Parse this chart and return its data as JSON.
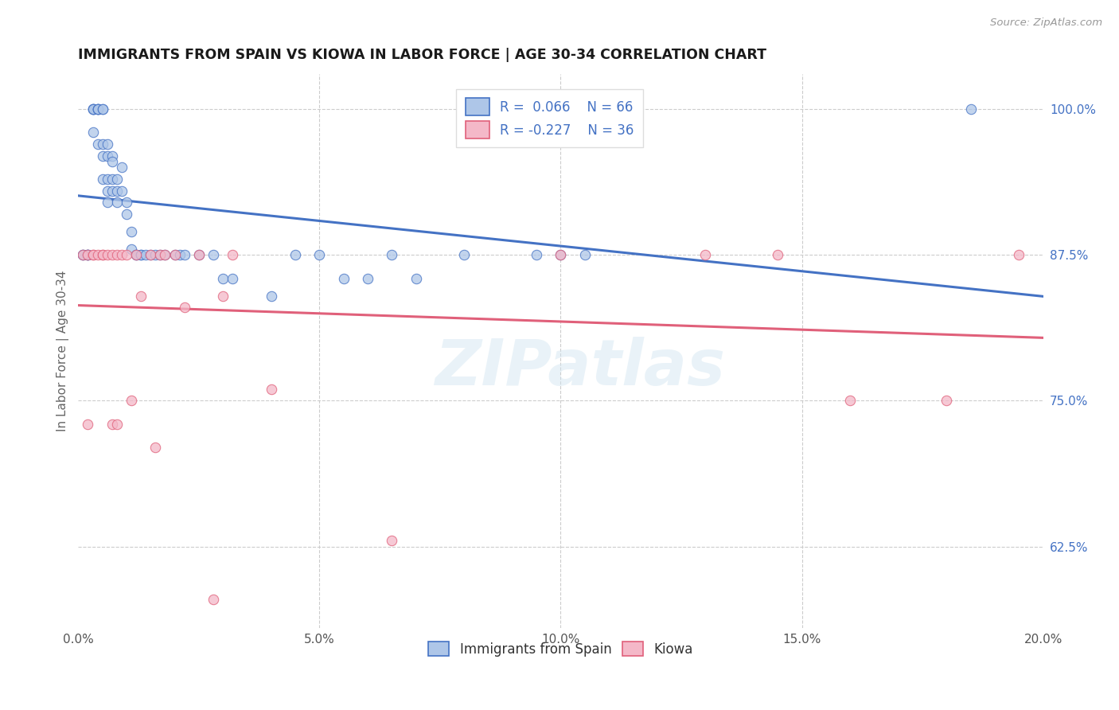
{
  "title": "IMMIGRANTS FROM SPAIN VS KIOWA IN LABOR FORCE | AGE 30-34 CORRELATION CHART",
  "source": "Source: ZipAtlas.com",
  "ylabel": "In Labor Force | Age 30-34",
  "xlim": [
    0.0,
    0.2
  ],
  "ylim": [
    0.555,
    1.03
  ],
  "xtick_labels": [
    "0.0%",
    "",
    "5.0%",
    "",
    "10.0%",
    "",
    "15.0%",
    "",
    "20.0%"
  ],
  "xtick_vals": [
    0.0,
    0.025,
    0.05,
    0.075,
    0.1,
    0.125,
    0.15,
    0.175,
    0.2
  ],
  "ytick_labels": [
    "62.5%",
    "75.0%",
    "87.5%",
    "100.0%"
  ],
  "ytick_vals": [
    0.625,
    0.75,
    0.875,
    1.0
  ],
  "color_spain": "#aec6e8",
  "color_kiowa": "#f4b8c8",
  "line_color_spain": "#4472c4",
  "line_color_kiowa": "#e0607a",
  "scatter_alpha": 0.75,
  "scatter_size": 80,
  "spain_x": [
    0.001,
    0.001,
    0.002,
    0.002,
    0.002,
    0.003,
    0.003,
    0.003,
    0.003,
    0.003,
    0.004,
    0.004,
    0.004,
    0.004,
    0.004,
    0.005,
    0.005,
    0.005,
    0.005,
    0.005,
    0.006,
    0.006,
    0.006,
    0.006,
    0.006,
    0.007,
    0.007,
    0.007,
    0.007,
    0.008,
    0.008,
    0.008,
    0.009,
    0.009,
    0.01,
    0.01,
    0.011,
    0.011,
    0.012,
    0.012,
    0.013,
    0.013,
    0.014,
    0.015,
    0.016,
    0.017,
    0.018,
    0.02,
    0.021,
    0.022,
    0.025,
    0.028,
    0.03,
    0.032,
    0.04,
    0.045,
    0.05,
    0.055,
    0.06,
    0.065,
    0.07,
    0.08,
    0.095,
    0.1,
    0.105,
    0.185
  ],
  "spain_y": [
    0.875,
    0.875,
    0.875,
    0.875,
    0.875,
    1.0,
    1.0,
    1.0,
    1.0,
    0.98,
    1.0,
    1.0,
    1.0,
    1.0,
    0.97,
    1.0,
    1.0,
    0.97,
    0.96,
    0.94,
    0.97,
    0.96,
    0.94,
    0.93,
    0.92,
    0.96,
    0.955,
    0.94,
    0.93,
    0.94,
    0.93,
    0.92,
    0.95,
    0.93,
    0.92,
    0.91,
    0.895,
    0.88,
    0.875,
    0.875,
    0.875,
    0.875,
    0.875,
    0.875,
    0.875,
    0.875,
    0.875,
    0.875,
    0.875,
    0.875,
    0.875,
    0.875,
    0.855,
    0.855,
    0.84,
    0.875,
    0.875,
    0.855,
    0.855,
    0.875,
    0.855,
    0.875,
    0.875,
    0.875,
    0.875,
    1.0
  ],
  "kiowa_x": [
    0.001,
    0.002,
    0.002,
    0.003,
    0.003,
    0.004,
    0.005,
    0.005,
    0.006,
    0.007,
    0.007,
    0.008,
    0.008,
    0.009,
    0.01,
    0.011,
    0.012,
    0.013,
    0.015,
    0.016,
    0.017,
    0.018,
    0.02,
    0.022,
    0.025,
    0.028,
    0.03,
    0.032,
    0.04,
    0.065,
    0.1,
    0.13,
    0.145,
    0.16,
    0.18,
    0.195
  ],
  "kiowa_y": [
    0.875,
    0.875,
    0.73,
    0.875,
    0.875,
    0.875,
    0.875,
    0.875,
    0.875,
    0.875,
    0.73,
    0.875,
    0.73,
    0.875,
    0.875,
    0.75,
    0.875,
    0.84,
    0.875,
    0.71,
    0.875,
    0.875,
    0.875,
    0.83,
    0.875,
    0.58,
    0.84,
    0.875,
    0.76,
    0.63,
    0.875,
    0.875,
    0.875,
    0.75,
    0.75,
    0.875
  ]
}
